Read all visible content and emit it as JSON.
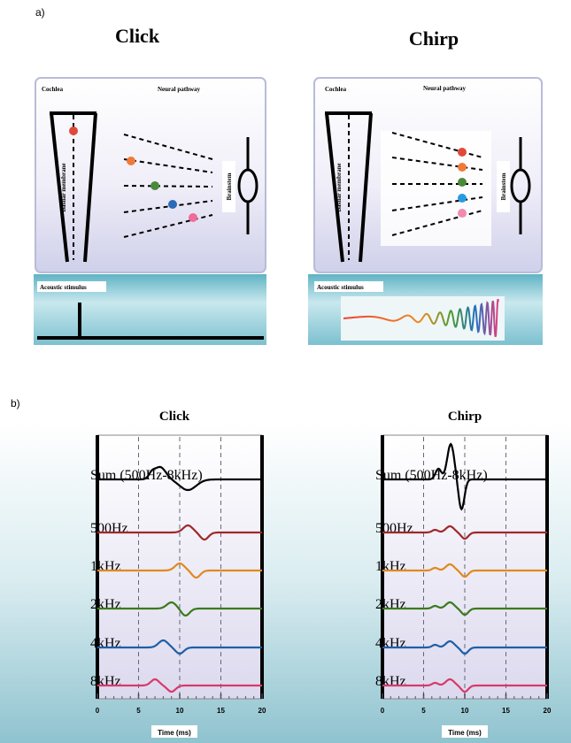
{
  "figure": {
    "panel_a": {
      "label": "a)",
      "click": {
        "title": "Click",
        "cochlea": "Cochlea",
        "neural_pathway": "Neural pathway",
        "basilar_membrane": "Basilar membrane",
        "brainstem": "Brainstem",
        "acoustic_stimulus": "Acoustic stimulus"
      },
      "chirp": {
        "title": "Chirp",
        "cochlea": "Cochlea",
        "neural_pathway": "Neural pathway",
        "basilar_membrane": "Basilar membrane",
        "brainstem": "Brainstem",
        "acoustic_stimulus": "Acoustic stimulus"
      }
    },
    "panel_b": {
      "label": "b)",
      "click": {
        "title": "Click",
        "rows": [
          "Sum (500Hz-8kHz)",
          "500Hz",
          "1kHz",
          "2kHz",
          "4kHz",
          "8kHz"
        ],
        "x_axis": {
          "label": "Time (ms)",
          "xlim": [
            0,
            20
          ],
          "xticks": [
            0,
            5,
            10,
            15,
            20
          ]
        }
      },
      "chirp": {
        "title": "Chirp",
        "rows": [
          "Sum (500Hz-8kHz)",
          "500Hz",
          "1kHz",
          "2kHz",
          "4kHz",
          "8kHz"
        ],
        "x_axis": {
          "label": "Time (ms)",
          "xlim": [
            0,
            20
          ],
          "xticks": [
            0,
            5,
            10,
            15,
            20
          ]
        }
      }
    }
  }
}
